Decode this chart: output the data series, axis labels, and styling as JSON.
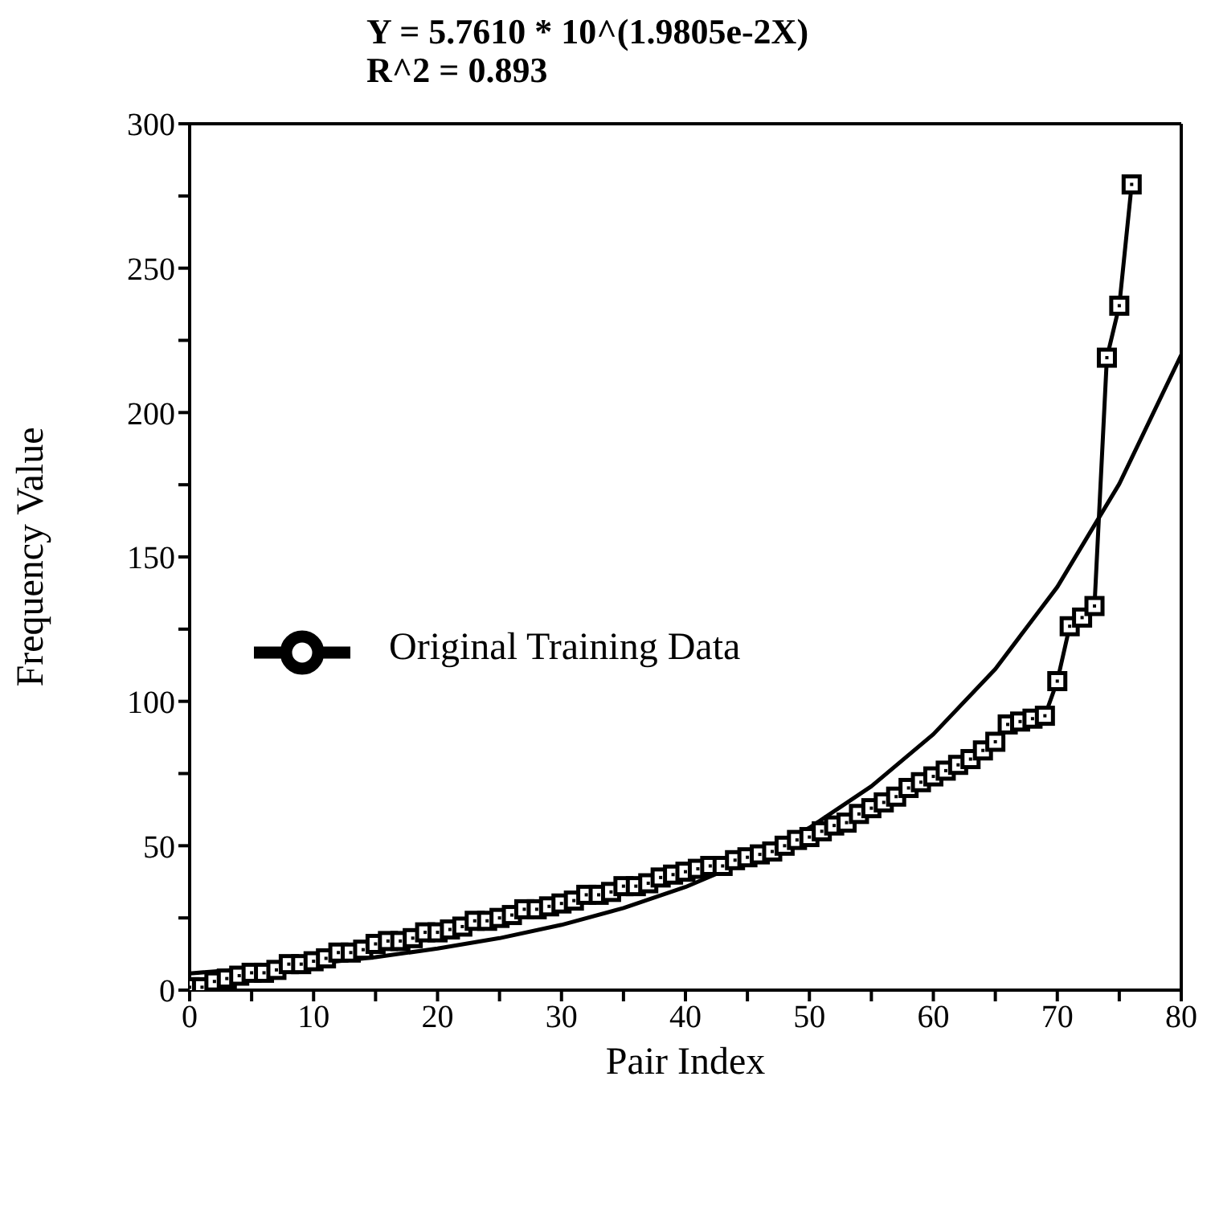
{
  "chart_data": {
    "type": "line",
    "title": "Y = 5.7610 * 10^(1.9805e-2X)",
    "subtitle": "R^2 = 0.893",
    "xlabel": "Pair Index",
    "ylabel": "Frequency Value",
    "xlim": [
      0,
      80
    ],
    "xticks": [
      0,
      {
        "value": 5,
        "label": null
      },
      10,
      {
        "value": 15,
        "label": null
      },
      20,
      {
        "value": 25,
        "label": null
      },
      30,
      {
        "value": 35,
        "label": null
      },
      40,
      {
        "value": 45,
        "label": null
      },
      50,
      {
        "value": 55,
        "label": null
      },
      60,
      {
        "value": 65,
        "label": null
      },
      70,
      {
        "value": 75,
        "label": null
      },
      80
    ],
    "ylim": [
      0,
      300
    ],
    "yticks": [
      0,
      {
        "value": 25,
        "label": null
      },
      50,
      {
        "value": 75,
        "label": null
      },
      100,
      {
        "value": 125,
        "label": null
      },
      150,
      {
        "value": 175,
        "label": null
      },
      200,
      {
        "value": 225,
        "label": null
      },
      250,
      {
        "value": 275,
        "label": null
      },
      300
    ],
    "legend": "left",
    "line_style": "solid",
    "series": [
      {
        "name": "Original Training Data",
        "color": "#000000",
        "marker": "square",
        "x": [
          0,
          1,
          2,
          3,
          4,
          5,
          6,
          7,
          8,
          9,
          10,
          11,
          12,
          13,
          14,
          15,
          16,
          17,
          18,
          19,
          20,
          21,
          22,
          23,
          24,
          25,
          26,
          27,
          28,
          29,
          30,
          31,
          32,
          33,
          34,
          35,
          36,
          37,
          38,
          39,
          40,
          41,
          42,
          43,
          44,
          45,
          46,
          47,
          48,
          49,
          50,
          51,
          52,
          53,
          54,
          55,
          56,
          57,
          58,
          59,
          60,
          61,
          62,
          63,
          64,
          65,
          66,
          67,
          68,
          69,
          70,
          71,
          72,
          73,
          74,
          75,
          76
        ],
        "values": [
          1,
          1,
          3,
          4,
          5,
          6,
          6,
          7,
          9,
          9,
          10,
          11,
          13,
          13,
          14,
          16,
          17,
          17,
          18,
          20,
          20,
          21,
          22,
          24,
          24,
          25,
          26,
          28,
          28,
          29,
          30,
          31,
          33,
          33,
          34,
          36,
          36,
          37,
          39,
          40,
          41,
          42,
          43,
          43,
          45,
          46,
          47,
          48,
          50,
          52,
          53,
          55,
          57,
          58,
          61,
          63,
          65,
          67,
          70,
          72,
          74,
          76,
          78,
          80,
          83,
          86,
          92,
          93,
          94,
          95,
          107,
          126,
          129,
          133,
          219,
          237,
          279
        ]
      },
      {
        "type": "line",
        "color": "#000000",
        "marker": "none",
        "x": [
          0,
          10,
          15,
          20,
          25,
          30,
          35,
          40,
          45,
          50,
          55,
          60,
          65,
          70,
          75,
          80
        ],
        "values": [
          5.8,
          9.1,
          11.4,
          14.4,
          18,
          22.6,
          28.4,
          35.7,
          44.8,
          56.2,
          70.6,
          88.6,
          111.2,
          139.6,
          175.3,
          220
        ]
      }
    ]
  }
}
